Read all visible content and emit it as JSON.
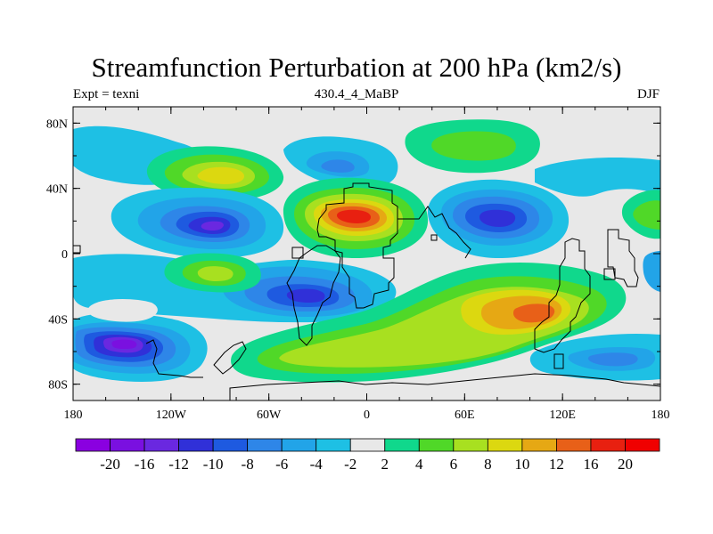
{
  "chart_data": {
    "type": "heatmap",
    "title": "Streamfunction Perturbation at 200 hPa (km2/s)",
    "subtitle_left": "Expt = texni",
    "subtitle_center": "430.4_4_MaBP",
    "subtitle_right": "DJF",
    "x_ticks": [
      "180",
      "120W",
      "60W",
      "0",
      "60E",
      "120E",
      "180"
    ],
    "x_tick_values": [
      -180,
      -120,
      -60,
      0,
      60,
      120,
      180
    ],
    "y_ticks": [
      "80N",
      "40N",
      "0",
      "40S",
      "80S"
    ],
    "y_tick_values": [
      80,
      40,
      0,
      -40,
      -80
    ],
    "xlim": [
      -180,
      180
    ],
    "ylim": [
      -90,
      90
    ],
    "colorbar": {
      "labels": [
        "-20",
        "-16",
        "-12",
        "-10",
        "-8",
        "-6",
        "-4",
        "-2",
        "2",
        "4",
        "6",
        "8",
        "10",
        "12",
        "16",
        "20"
      ],
      "colors": [
        "#8a00e0",
        "#7a10e0",
        "#6a28e0",
        "#3030d8",
        "#1e5ae0",
        "#2e86e8",
        "#22a4e8",
        "#1ec0e4",
        "#e8e8e8",
        "#10d88c",
        "#50d828",
        "#a8e020",
        "#dcd810",
        "#e6a814",
        "#e86018",
        "#e82010",
        "#f00000"
      ]
    },
    "features": [
      {
        "name": "positive-center-north-africa",
        "lon": -10,
        "lat": 24,
        "peak": 16
      },
      {
        "name": "positive-center-south-indian-ocean",
        "lon": 110,
        "lat": -36,
        "peak": 12
      },
      {
        "name": "positive-north-pacific",
        "lon": 65,
        "lat": 68,
        "peak": 6
      },
      {
        "name": "positive-north-atlantic",
        "lon": -100,
        "lat": 52,
        "peak": 8
      },
      {
        "name": "negative-center-east-pacific",
        "lon": -92,
        "lat": 18,
        "peak": -14
      },
      {
        "name": "negative-center-south-pacific",
        "lon": -150,
        "lat": -56,
        "peak": -16
      },
      {
        "name": "negative-center-asia",
        "lon": 75,
        "lat": 22,
        "peak": -10
      }
    ]
  }
}
